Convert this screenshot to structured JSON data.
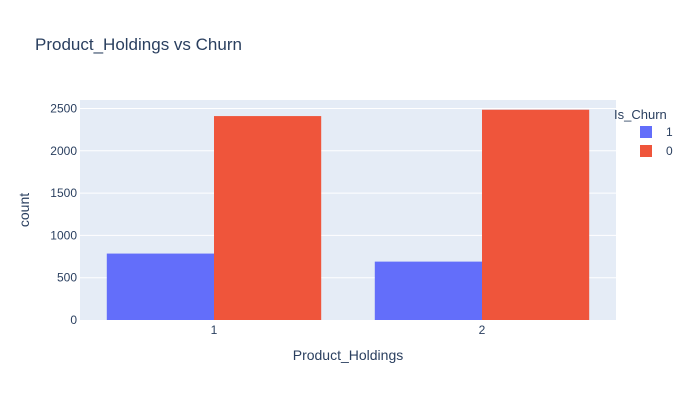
{
  "chart_data": {
    "type": "bar",
    "title": "Product_Holdings vs Churn",
    "xlabel": "Product_Holdings",
    "ylabel": "count",
    "categories": [
      "1",
      "2"
    ],
    "ylim": [
      0,
      2600
    ],
    "yticks": [
      0,
      500,
      1000,
      1500,
      2000,
      2500
    ],
    "grid": true,
    "legend": {
      "title": "Is_Churn",
      "placement": "right"
    },
    "series": [
      {
        "name": "1",
        "color": "#636efa",
        "values": [
          785,
          690
        ]
      },
      {
        "name": "0",
        "color": "#ef553b",
        "values": [
          2410,
          2485
        ]
      }
    ]
  }
}
